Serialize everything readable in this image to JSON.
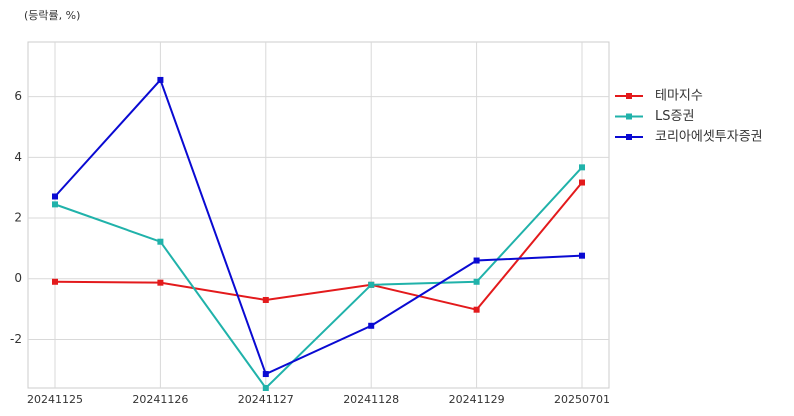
{
  "chart_data": {
    "type": "line",
    "y_label": "(등락률, %)",
    "categories": [
      "20241125",
      "20241126",
      "20241127",
      "20241128",
      "20241129",
      "20250701"
    ],
    "series": [
      {
        "name": "테마지수",
        "color": "#e31a1c",
        "values": [
          -0.1,
          -0.13,
          -0.7,
          -0.2,
          -1.02,
          3.17
        ]
      },
      {
        "name": "LS증권",
        "color": "#20b2aa",
        "values": [
          2.45,
          1.22,
          -3.6,
          -0.2,
          -0.1,
          3.67
        ]
      },
      {
        "name": "코리아에셋투자증권",
        "color": "#0a0ad2",
        "values": [
          2.71,
          6.55,
          -3.14,
          -1.55,
          0.6,
          0.76
        ]
      }
    ],
    "ylim": [
      -3.6,
      7.8
    ],
    "yticks": [
      -2,
      0,
      2,
      4,
      6
    ],
    "grid": true,
    "legend": "right"
  }
}
